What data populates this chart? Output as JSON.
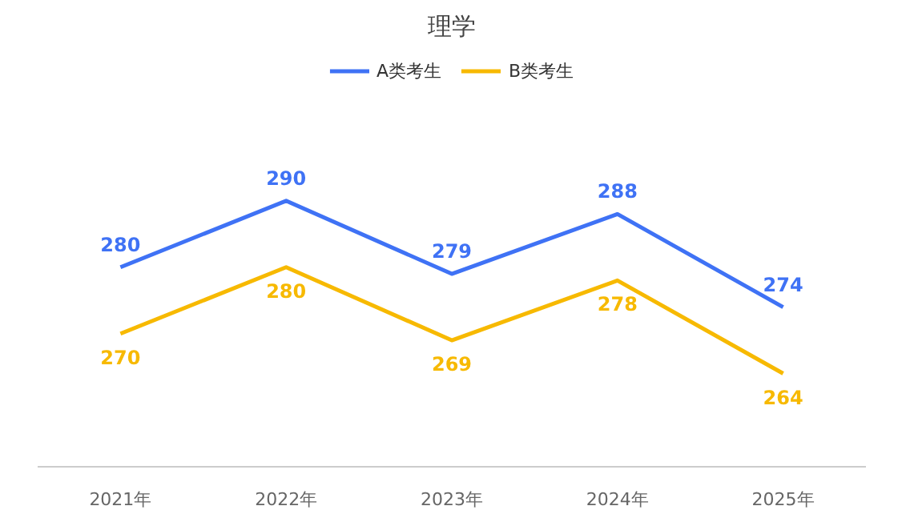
{
  "chart_data": {
    "type": "line",
    "title": "理学",
    "categories": [
      "2021年",
      "2022年",
      "2023年",
      "2024年",
      "2025年"
    ],
    "series": [
      {
        "name": "A类考生",
        "color": "#3f72f5",
        "values": [
          280,
          290,
          279,
          288,
          274
        ]
      },
      {
        "name": "B类考生",
        "color": "#f7b900",
        "values": [
          270,
          280,
          269,
          278,
          264
        ]
      }
    ],
    "data_labels": true,
    "legend": "top",
    "grid": false,
    "marker": "none",
    "line_style": "solid",
    "tick_labels": "x"
  }
}
